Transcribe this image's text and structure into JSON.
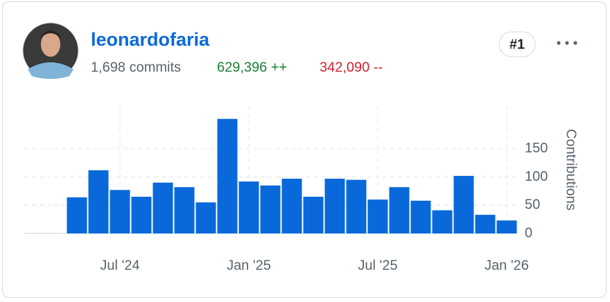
{
  "user": {
    "name": "leonardofaria",
    "commits": "1,698 commits",
    "additions": "629,396 ++",
    "deletions": "342,090 --",
    "rank": "#1"
  },
  "chart_data": {
    "type": "bar",
    "y_label": "Contributions",
    "categories": [
      null,
      null,
      "Jul '24",
      null,
      null,
      null,
      null,
      null,
      "Jan '25",
      null,
      null,
      null,
      null,
      null,
      "Jul '25",
      null,
      null,
      null,
      null,
      null,
      "Jan '26"
    ],
    "values": [
      64,
      112,
      77,
      65,
      90,
      82,
      55,
      203,
      92,
      85,
      97,
      65,
      97,
      95,
      60,
      82,
      58,
      41,
      102,
      33,
      23
    ],
    "color": "#0969da",
    "ylim": [
      0,
      205
    ],
    "yticks": [
      0,
      50,
      100,
      150
    ],
    "grid": true
  }
}
